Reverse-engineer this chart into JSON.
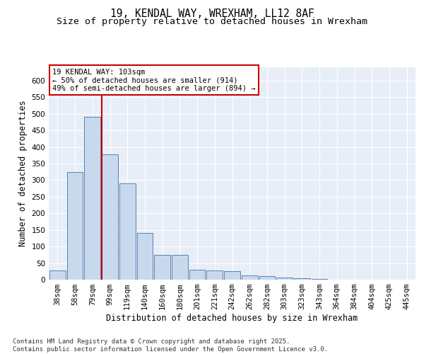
{
  "title_line1": "19, KENDAL WAY, WREXHAM, LL12 8AF",
  "title_line2": "Size of property relative to detached houses in Wrexham",
  "xlabel": "Distribution of detached houses by size in Wrexham",
  "ylabel": "Number of detached properties",
  "categories": [
    "38sqm",
    "58sqm",
    "79sqm",
    "99sqm",
    "119sqm",
    "140sqm",
    "160sqm",
    "180sqm",
    "201sqm",
    "221sqm",
    "242sqm",
    "262sqm",
    "282sqm",
    "303sqm",
    "323sqm",
    "343sqm",
    "364sqm",
    "384sqm",
    "404sqm",
    "425sqm",
    "445sqm"
  ],
  "values": [
    28,
    324,
    490,
    378,
    290,
    140,
    75,
    75,
    30,
    28,
    25,
    13,
    10,
    7,
    4,
    2,
    1,
    1,
    0.5,
    0.5,
    0.5
  ],
  "bar_color": "#c9d9ed",
  "bar_edge_color": "#4472a8",
  "annotation_text": "19 KENDAL WAY: 103sqm\n← 50% of detached houses are smaller (914)\n49% of semi-detached houses are larger (894) →",
  "annotation_box_color": "white",
  "annotation_box_edgecolor": "#cc0000",
  "property_line_color": "#cc0000",
  "background_color": "#e8eef7",
  "grid_color": "white",
  "footer_text": "Contains HM Land Registry data © Crown copyright and database right 2025.\nContains public sector information licensed under the Open Government Licence v3.0.",
  "ylim": [
    0,
    640
  ],
  "yticks": [
    0,
    50,
    100,
    150,
    200,
    250,
    300,
    350,
    400,
    450,
    500,
    550,
    600
  ],
  "title_fontsize": 10.5,
  "subtitle_fontsize": 9.5,
  "axis_label_fontsize": 8.5,
  "tick_fontsize": 7.5,
  "annotation_fontsize": 7.5,
  "footer_fontsize": 6.5,
  "red_line_x": 2.55
}
